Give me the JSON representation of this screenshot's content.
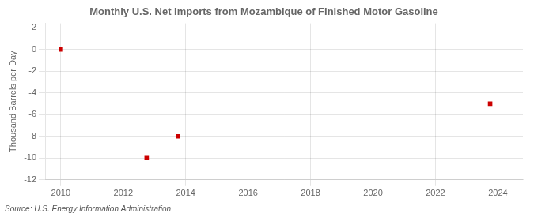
{
  "chart_data": {
    "type": "scatter",
    "title": "Monthly U.S. Net Imports from Mozambique of Finished Motor Gasoline",
    "ylabel": "Thousand Barrels per Day",
    "annotation": "Source: U.S. Energy Information Administration",
    "x": [
      2010.0,
      2012.75,
      2013.75,
      2023.75
    ],
    "values": [
      0,
      -10,
      -8,
      -5
    ],
    "color": "#CC0000",
    "marker": "square",
    "xlim": [
      2009.5,
      2024.8
    ],
    "ylim": [
      -12,
      2.4
    ],
    "xticks": [
      2010,
      2012,
      2014,
      2016,
      2018,
      2020,
      2022,
      2024
    ],
    "yticks": [
      2,
      0,
      -2,
      -4,
      -6,
      -8,
      -10,
      -12
    ],
    "grid": true
  }
}
